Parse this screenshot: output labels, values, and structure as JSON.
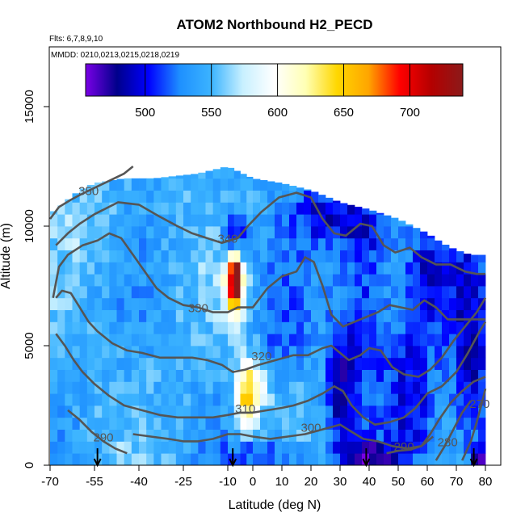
{
  "chart_data": {
    "type": "heatmap",
    "title": "ATOM2 Northbound H2_PECD",
    "flights_note": "Flts: 6,7,8,9,10",
    "dates_note": "MMDD: 0210,0213,0215,0218,0219",
    "xlabel": "Latitude (deg N)",
    "ylabel": "Altitude (m)",
    "xlim": [
      -70,
      80
    ],
    "ylim": [
      0,
      17500
    ],
    "x_ticks": [
      -70,
      -55,
      -40,
      -25,
      -10,
      0,
      10,
      20,
      30,
      40,
      50,
      60,
      70,
      80
    ],
    "x_tick_labels": [
      "-70",
      "-55",
      "-40",
      "-25",
      "-10",
      "0",
      "10",
      "20",
      "30",
      "40",
      "50",
      "60",
      "70",
      "80"
    ],
    "y_ticks": [
      0,
      5000,
      10000,
      15000
    ],
    "y_tick_labels": [
      "0",
      "5000",
      "10000",
      "15000"
    ],
    "colorbar": {
      "range": [
        455,
        740
      ],
      "ticks": [
        500,
        550,
        600,
        650,
        700
      ],
      "tick_labels": [
        "500",
        "550",
        "600",
        "650",
        "700"
      ],
      "colors": [
        "#7a00e6",
        "#00008b",
        "#0000ff",
        "#1e90ff",
        "#3cb4ff",
        "#c8f0ff",
        "#ffffff",
        "#ffffb4",
        "#ffd700",
        "#ffa500",
        "#ff0000",
        "#b40000",
        "#8b1a1a"
      ]
    },
    "background_value": 545,
    "anomalies": [
      {
        "x": -7,
        "y": 8000,
        "value": 700,
        "sx": 1.5,
        "sy": 700
      },
      {
        "x": -7,
        "y": 7500,
        "value": 650,
        "sx": 3,
        "sy": 900
      },
      {
        "x": -7,
        "y": 9400,
        "value": 470,
        "sx": 3,
        "sy": 700
      },
      {
        "x": -3,
        "y": 2700,
        "value": 615,
        "sx": 3,
        "sy": 900
      },
      {
        "x": 0,
        "y": 3400,
        "value": 600,
        "sx": 4,
        "sy": 900
      },
      {
        "x": 30,
        "y": 3000,
        "value": 490,
        "sx": 3,
        "sy": 1800
      },
      {
        "x": 38,
        "y": 6000,
        "value": 495,
        "sx": 6,
        "sy": 2500
      },
      {
        "x": 55,
        "y": 3000,
        "value": 495,
        "sx": 6,
        "sy": 2500
      },
      {
        "x": 75,
        "y": 4500,
        "value": 490,
        "sx": 5,
        "sy": 3500
      },
      {
        "x": 25,
        "y": 10500,
        "value": 500,
        "sx": 8,
        "sy": 900
      },
      {
        "x": 40,
        "y": 10000,
        "value": 505,
        "sx": 7,
        "sy": 1200
      },
      {
        "x": 10,
        "y": 6000,
        "value": 520,
        "sx": 6,
        "sy": 2000
      },
      {
        "x": 60,
        "y": 8000,
        "value": 505,
        "sx": 6,
        "sy": 1500
      },
      {
        "x": -55,
        "y": 9800,
        "value": 565,
        "sx": 8,
        "sy": 1200
      },
      {
        "x": 5,
        "y": 400,
        "value": 505,
        "sx": 10,
        "sy": 500
      },
      {
        "x": 40,
        "y": 300,
        "value": 480,
        "sx": 6,
        "sy": 500
      },
      {
        "x": 78,
        "y": 200,
        "value": 465,
        "sx": 2,
        "sy": 400
      }
    ],
    "data_domain_top": [
      [
        -70,
        10500
      ],
      [
        -65,
        11000
      ],
      [
        -60,
        11500
      ],
      [
        -55,
        11800
      ],
      [
        -45,
        12000
      ],
      [
        -35,
        12000
      ],
      [
        -20,
        12200
      ],
      [
        -10,
        12500
      ],
      [
        0,
        12000
      ],
      [
        10,
        11800
      ],
      [
        20,
        11500
      ],
      [
        30,
        11000
      ],
      [
        40,
        10700
      ],
      [
        50,
        10300
      ],
      [
        55,
        10000
      ],
      [
        60,
        9700
      ],
      [
        65,
        9300
      ],
      [
        70,
        9000
      ],
      [
        75,
        8800
      ],
      [
        80,
        8800
      ]
    ],
    "contours": [
      {
        "label": "350",
        "label_pos": [
          -57,
          11300
        ],
        "points": [
          [
            -70,
            10300
          ],
          [
            -67,
            10800
          ],
          [
            -63,
            11100
          ],
          [
            -60,
            11300
          ],
          [
            -55,
            11600
          ],
          [
            -50,
            11900
          ],
          [
            -45,
            12200
          ],
          [
            -42,
            12500
          ]
        ]
      },
      {
        "label": "340",
        "label_pos": [
          -10,
          9300
        ],
        "points": [
          [
            -68,
            9200
          ],
          [
            -64,
            9700
          ],
          [
            -60,
            10100
          ],
          [
            -55,
            10500
          ],
          [
            -47,
            11000
          ],
          [
            -40,
            10900
          ],
          [
            -33,
            10400
          ],
          [
            -27,
            10000
          ],
          [
            -22,
            9700
          ],
          [
            -17,
            9500
          ],
          [
            -12,
            9300
          ],
          [
            -6,
            9500
          ],
          [
            -2,
            10000
          ],
          [
            3,
            10600
          ],
          [
            9,
            11200
          ],
          [
            15,
            11400
          ],
          [
            20,
            11200
          ],
          [
            24,
            10300
          ],
          [
            28,
            9700
          ],
          [
            32,
            9600
          ],
          [
            34,
            9800
          ],
          [
            37,
            10100
          ],
          [
            41,
            10000
          ],
          [
            45,
            9200
          ],
          [
            49,
            8900
          ],
          [
            54,
            9100
          ],
          [
            58,
            8700
          ],
          [
            63,
            8400
          ],
          [
            68,
            8400
          ],
          [
            73,
            8100
          ],
          [
            77,
            8000
          ],
          [
            80,
            8000
          ]
        ]
      },
      {
        "label": "330",
        "label_pos": [
          -20,
          6400
        ],
        "points": [
          [
            -69,
            7000
          ],
          [
            -67,
            8300
          ],
          [
            -64,
            8800
          ],
          [
            -59,
            9200
          ],
          [
            -54,
            9400
          ],
          [
            -50,
            9700
          ],
          [
            -46,
            9500
          ],
          [
            -42,
            8800
          ],
          [
            -38,
            8100
          ],
          [
            -34,
            7400
          ],
          [
            -30,
            7000
          ],
          [
            -25,
            6700
          ],
          [
            -20,
            6600
          ],
          [
            -15,
            6400
          ],
          [
            -10,
            6400
          ],
          [
            -6,
            6600
          ],
          [
            0,
            6600
          ],
          [
            5,
            7400
          ],
          [
            10,
            7900
          ],
          [
            15,
            8100
          ],
          [
            18,
            8700
          ],
          [
            21,
            8500
          ],
          [
            24,
            7500
          ],
          [
            27,
            6300
          ],
          [
            31,
            5800
          ],
          [
            35,
            6000
          ],
          [
            39,
            6200
          ],
          [
            43,
            6400
          ],
          [
            47,
            6700
          ],
          [
            51,
            6600
          ],
          [
            55,
            6500
          ],
          [
            59,
            6900
          ],
          [
            63,
            6600
          ],
          [
            67,
            6100
          ],
          [
            71,
            6100
          ],
          [
            75,
            6100
          ],
          [
            80,
            6100
          ]
        ]
      },
      {
        "label": "320",
        "label_pos": [
          3,
          4400
        ],
        "points": [
          [
            -68,
            7000
          ],
          [
            -66,
            7300
          ],
          [
            -63,
            7200
          ],
          [
            -60,
            6600
          ],
          [
            -57,
            6000
          ],
          [
            -54,
            5600
          ],
          [
            -49,
            5100
          ],
          [
            -44,
            4800
          ],
          [
            -39,
            4700
          ],
          [
            -33,
            4500
          ],
          [
            -27,
            4500
          ],
          [
            -22,
            4500
          ],
          [
            -17,
            4400
          ],
          [
            -12,
            4200
          ],
          [
            -8,
            3900
          ],
          [
            -3,
            4000
          ],
          [
            2,
            4200
          ],
          [
            8,
            4400
          ],
          [
            14,
            4600
          ],
          [
            19,
            4600
          ],
          [
            24,
            4900
          ],
          [
            27,
            5000
          ],
          [
            30,
            4700
          ],
          [
            33,
            4400
          ],
          [
            37,
            4600
          ],
          [
            40,
            4900
          ],
          [
            44,
            4800
          ],
          [
            48,
            4100
          ],
          [
            52,
            3800
          ],
          [
            57,
            3700
          ],
          [
            61,
            4000
          ],
          [
            65,
            4500
          ],
          [
            69,
            5200
          ],
          [
            73,
            5800
          ],
          [
            77,
            6400
          ],
          [
            80,
            7000
          ]
        ]
      },
      {
        "label": "310",
        "label_pos": [
          -3,
          2200
        ],
        "points": [
          [
            -68,
            5500
          ],
          [
            -65,
            5000
          ],
          [
            -62,
            4400
          ],
          [
            -59,
            3900
          ],
          [
            -55,
            3400
          ],
          [
            -50,
            2900
          ],
          [
            -45,
            2500
          ],
          [
            -39,
            2300
          ],
          [
            -33,
            2100
          ],
          [
            -27,
            2000
          ],
          [
            -21,
            2000
          ],
          [
            -15,
            2000
          ],
          [
            -10,
            2100
          ],
          [
            -5,
            2200
          ],
          [
            0,
            2200
          ],
          [
            5,
            2300
          ],
          [
            10,
            2400
          ],
          [
            14,
            2500
          ],
          [
            19,
            2700
          ],
          [
            24,
            3000
          ],
          [
            28,
            3300
          ],
          [
            31,
            3100
          ],
          [
            34,
            2500
          ],
          [
            38,
            2000
          ],
          [
            42,
            1700
          ],
          [
            47,
            1800
          ],
          [
            52,
            2000
          ],
          [
            56,
            2400
          ],
          [
            60,
            3000
          ],
          [
            65,
            3300
          ],
          [
            70,
            3900
          ],
          [
            74,
            4700
          ],
          [
            78,
            5600
          ],
          [
            80,
            6000
          ]
        ]
      },
      {
        "label": "300",
        "label_pos": [
          20,
          1400
        ],
        "points": [
          [
            -42,
            1300
          ],
          [
            -36,
            1200
          ],
          [
            -30,
            1100
          ],
          [
            -25,
            1000
          ],
          [
            -20,
            1000
          ],
          [
            -15,
            1100
          ],
          [
            -10,
            1300
          ],
          [
            -5,
            1300
          ],
          [
            0,
            1200
          ],
          [
            6,
            1100
          ],
          [
            12,
            1200
          ],
          [
            18,
            1300
          ],
          [
            24,
            1500
          ],
          [
            30,
            1700
          ],
          [
            34,
            1400
          ],
          [
            38,
            1100
          ],
          [
            43,
            1000
          ],
          [
            48,
            800
          ],
          [
            53,
            700
          ],
          [
            58,
            800
          ],
          [
            61,
            1300
          ],
          [
            64,
            1900
          ],
          [
            68,
            2600
          ],
          [
            72,
            3100
          ],
          [
            76,
            3500
          ],
          [
            80,
            3700
          ]
        ]
      },
      {
        "label": "290",
        "label_pos": [
          -52,
          1000
        ],
        "points": [
          [
            -64,
            2300
          ],
          [
            -60,
            1900
          ],
          [
            -56,
            1400
          ],
          [
            -52,
            1000
          ],
          [
            -48,
            700
          ],
          [
            -44,
            500
          ]
        ]
      },
      {
        "label": "290",
        "label_pos": [
          52,
          600
        ],
        "points": [
          [
            46,
            500
          ],
          [
            50,
            600
          ],
          [
            54,
            650
          ],
          [
            58,
            800
          ],
          [
            62,
            1200
          ]
        ]
      },
      {
        "label": "280",
        "label_pos": [
          67,
          800
        ],
        "points": [
          [
            63,
            200
          ],
          [
            66,
            800
          ],
          [
            69,
            1500
          ],
          [
            72,
            2200
          ],
          [
            75,
            2700
          ]
        ]
      },
      {
        "label": "270",
        "label_pos": [
          78,
          2400
        ],
        "points": [
          [
            72,
            200
          ],
          [
            75,
            1000
          ],
          [
            77,
            1800
          ],
          [
            79,
            2700
          ],
          [
            80,
            3200
          ]
        ]
      }
    ],
    "arrows_x": [
      -54,
      -8,
      39,
      76
    ]
  }
}
